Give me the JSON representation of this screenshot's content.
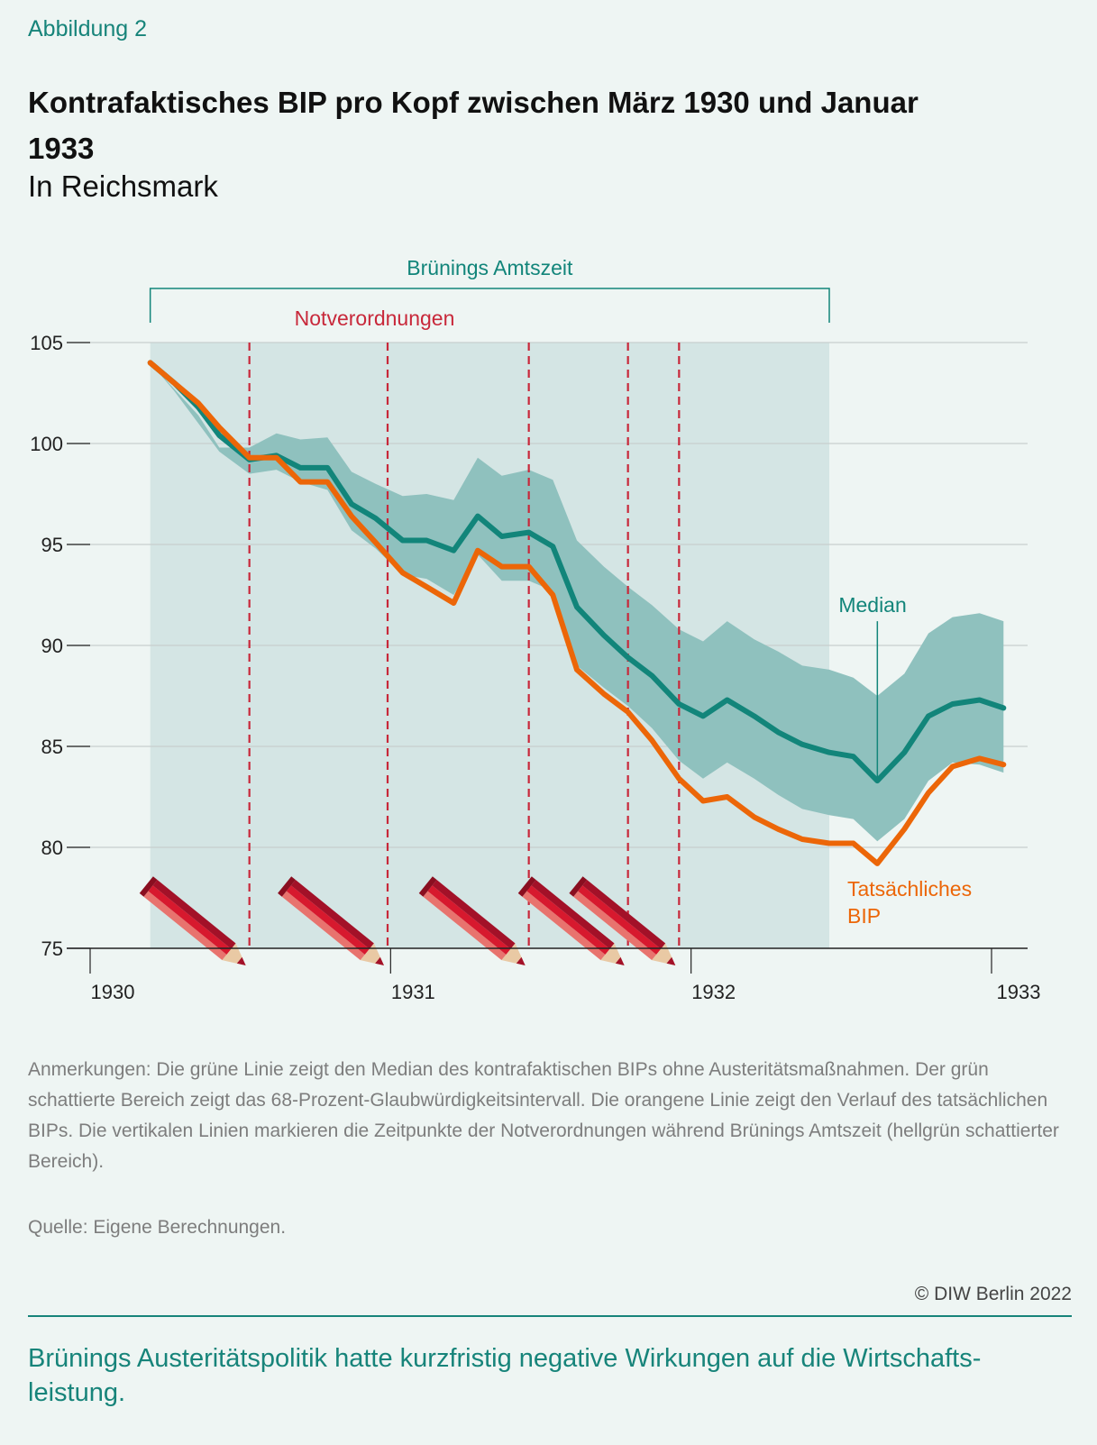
{
  "figure_label": "Abbildung 2",
  "title": "Kontrafaktisches BIP pro Kopf zwischen März 1930 und Januar 1933",
  "subtitle": "In Reichsmark",
  "chart_data": {
    "type": "line",
    "x_ticks": [
      "1930",
      "1931",
      "1932",
      "1933"
    ],
    "xlim": [
      1930.0,
      1933.06
    ],
    "ylim": [
      75,
      105
    ],
    "y_ticks": [
      75,
      80,
      85,
      90,
      95,
      100,
      105
    ],
    "grid": "horizontal",
    "term_label": "Brünings Amtszeit",
    "term_range": [
      1930.2,
      1932.46
    ],
    "decrees_label": "Notverordnungen",
    "decree_dates": [
      1930.53,
      1930.99,
      1931.46,
      1931.79,
      1931.96
    ],
    "x": [
      1930.2,
      1930.28,
      1930.36,
      1930.43,
      1930.53,
      1930.62,
      1930.7,
      1930.79,
      1930.87,
      1930.95,
      1931.04,
      1931.12,
      1931.21,
      1931.29,
      1931.37,
      1931.46,
      1931.54,
      1931.62,
      1931.71,
      1931.79,
      1931.87,
      1931.96,
      1932.04,
      1932.12,
      1932.21,
      1932.29,
      1932.37,
      1932.46,
      1932.54,
      1932.62,
      1932.71,
      1932.79,
      1932.87,
      1932.96,
      1933.04
    ],
    "series": [
      {
        "name": "Median",
        "color": "#12857a",
        "values": [
          104.0,
          103.0,
          101.8,
          100.4,
          99.2,
          99.4,
          98.8,
          98.8,
          97.0,
          96.3,
          95.2,
          95.2,
          94.7,
          96.4,
          95.4,
          95.6,
          94.9,
          91.9,
          90.5,
          89.4,
          88.5,
          87.1,
          86.5,
          87.3,
          86.5,
          85.7,
          85.1,
          84.7,
          84.5,
          83.3,
          84.7,
          86.5,
          87.1,
          87.3,
          86.9
        ]
      },
      {
        "name": "Tatsächliches BIP",
        "color": "#ec6608",
        "values": [
          104.0,
          103.0,
          102.0,
          100.8,
          99.3,
          99.3,
          98.1,
          98.1,
          96.4,
          95.1,
          93.6,
          92.9,
          92.1,
          94.7,
          93.9,
          93.9,
          92.5,
          88.8,
          87.6,
          86.7,
          85.3,
          83.4,
          82.3,
          82.5,
          81.5,
          80.9,
          80.4,
          80.2,
          80.2,
          79.2,
          80.9,
          82.7,
          84.0,
          84.4,
          84.1
        ]
      }
    ],
    "band": {
      "label": "68-Prozent-Glaubwürdigkeitsintervall",
      "color": "#8fc1be",
      "upper": [
        104.0,
        102.7,
        101.4,
        99.8,
        99.8,
        100.5,
        100.2,
        100.3,
        98.6,
        98.0,
        97.4,
        97.5,
        97.2,
        99.3,
        98.4,
        98.7,
        98.2,
        95.2,
        93.9,
        92.9,
        92.0,
        90.8,
        90.2,
        91.2,
        90.3,
        89.7,
        89.0,
        88.8,
        88.4,
        87.5,
        88.6,
        90.6,
        91.4,
        91.6,
        91.2
      ],
      "lower": [
        104.0,
        102.6,
        101.0,
        99.6,
        98.5,
        98.7,
        98.1,
        97.7,
        95.7,
        94.8,
        93.5,
        93.3,
        92.5,
        94.5,
        93.2,
        93.2,
        92.7,
        89.0,
        87.9,
        87.0,
        85.9,
        84.3,
        83.4,
        84.2,
        83.4,
        82.6,
        81.9,
        81.6,
        81.4,
        80.3,
        81.4,
        83.3,
        84.2,
        84.1,
        83.7
      ]
    },
    "labels": {
      "median": "Median",
      "actual_line1": "Tatsächliches",
      "actual_line2": "BIP"
    },
    "colors": {
      "term_shade": "#d4e5e4",
      "decree_line": "#c8283a",
      "bracket": "#12857a",
      "axis": "#222222",
      "gridline": "#c8cfcd"
    }
  },
  "notes": "Anmerkungen: Die grüne Linie zeigt den Median des kontrafaktischen BIPs ohne Austeritätsmaßnahmen. Der grün schattierte Bereich zeigt das 68-Prozent-Glaubwürdigkeitsintervall. Die orangene Linie zeigt den Verlauf des tatsächlichen BIPs. Die vertikalen Linien markieren die Zeitpunkte der Notverordnungen während Brünings Amtszeit (hellgrün schattierter Bereich).",
  "source": "Quelle: Eigene Berechnungen.",
  "copyright": "© DIW Berlin 2022",
  "takeaway": "Brünings Austeritätspolitik hatte kurzfristig negative Wirkungen auf die Wirtschafts­leistung."
}
